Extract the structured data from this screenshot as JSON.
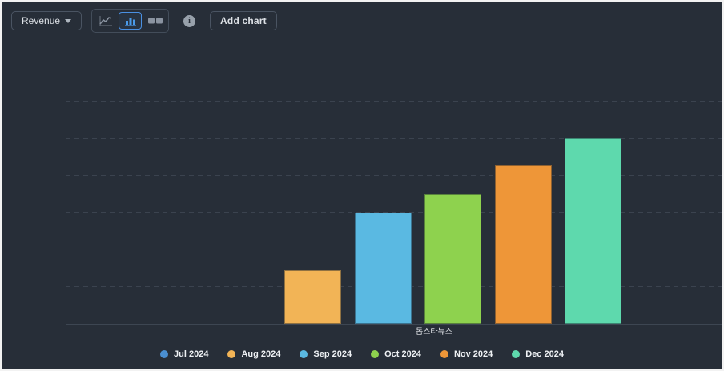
{
  "toolbar": {
    "metric_label": "Revenue",
    "add_chart_label": "Add chart",
    "info_glyph": "i",
    "selected_chart_type": "bar"
  },
  "colors": {
    "background": "#272e38",
    "accent_blue": "#4a90e2",
    "gridline": "#3b434f",
    "axis_line": "#3d4652"
  },
  "chart_data": {
    "type": "bar",
    "title": "",
    "categories": [
      "Jul 2024",
      "Aug 2024",
      "Sep 2024",
      "Oct 2024",
      "Nov 2024",
      "Dec 2024"
    ],
    "values": [
      0,
      1.45,
      3.0,
      3.5,
      4.3,
      5.0
    ],
    "colors": [
      "#4a8fd2",
      "#f2b456",
      "#5ab9e2",
      "#8ed24e",
      "#ee9638",
      "#5ed9ad"
    ],
    "xlabel": "톱스타뉴스",
    "ylabel": "",
    "ylim": [
      0,
      7.4
    ],
    "gridline_values": [
      1,
      2,
      3,
      4,
      5,
      6
    ],
    "y_axis_tick_labels_visible": false,
    "grid": "dashed-horizontal",
    "legend_position": "bottom"
  }
}
